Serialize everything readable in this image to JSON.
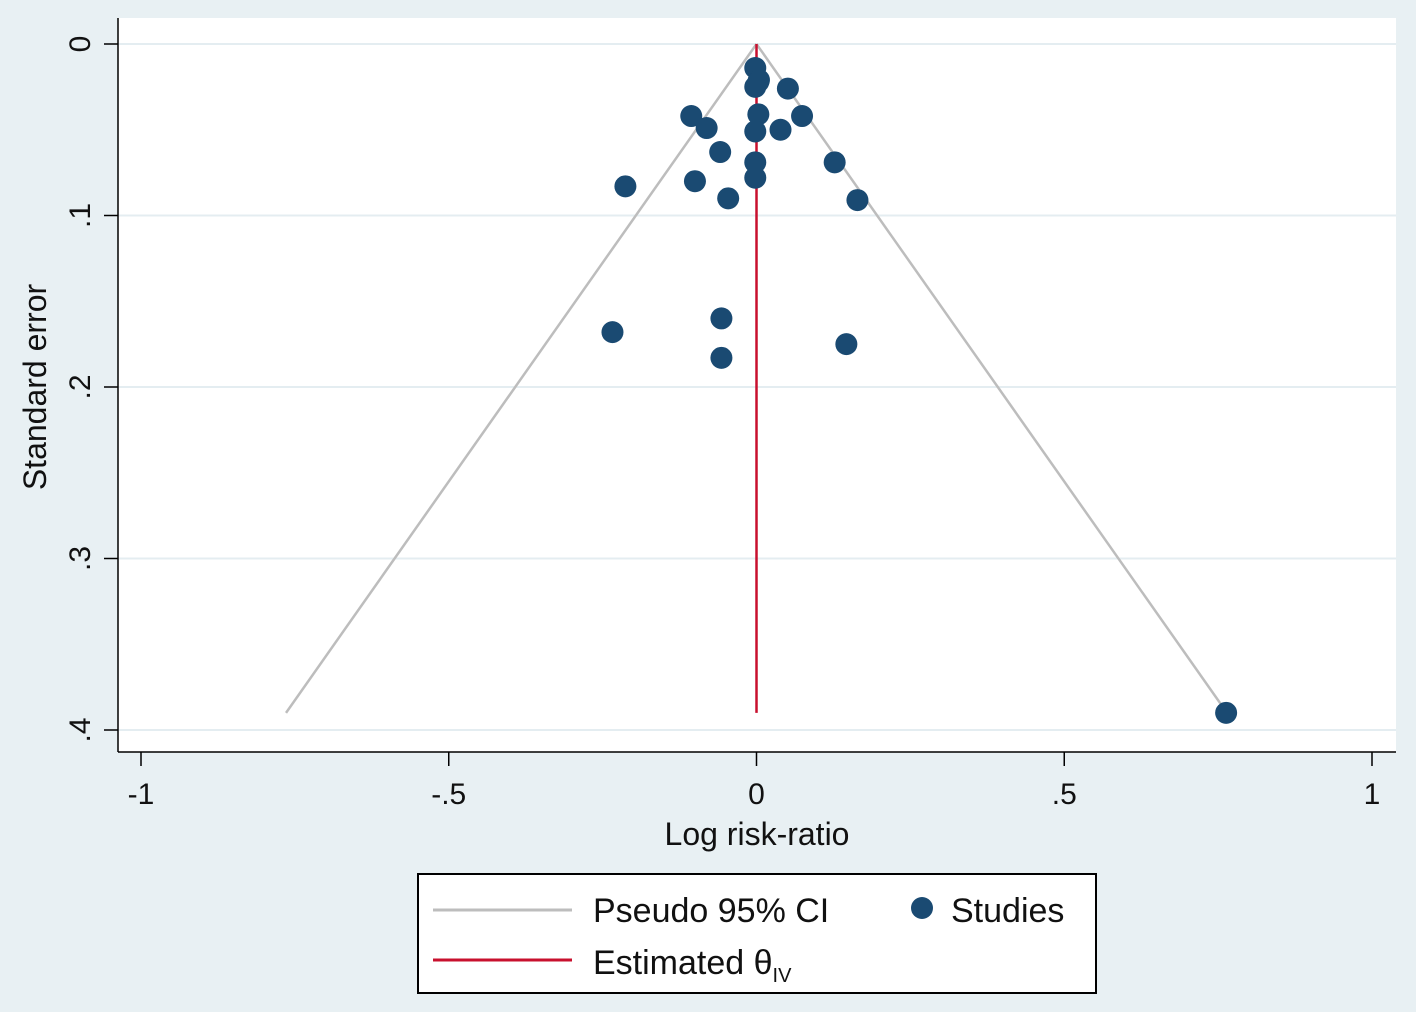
{
  "chart_data": {
    "type": "scatter",
    "title": "",
    "xlabel": "Log risk-ratio",
    "ylabel": "Standard error",
    "xlim": [
      -1,
      1
    ],
    "ylim": [
      0,
      0.4
    ],
    "y_reversed": true,
    "grid": true,
    "x_ticks": [
      {
        "value": -1,
        "label": "-1"
      },
      {
        "value": -0.5,
        "label": "-.5"
      },
      {
        "value": 0,
        "label": "0"
      },
      {
        "value": 0.5,
        "label": ".5"
      },
      {
        "value": 1,
        "label": "1"
      }
    ],
    "y_ticks": [
      {
        "value": 0,
        "label": "0"
      },
      {
        "value": 0.1,
        "label": ".1"
      },
      {
        "value": 0.2,
        "label": ".2"
      },
      {
        "value": 0.3,
        "label": ".3"
      },
      {
        "value": 0.4,
        "label": ".4"
      }
    ],
    "estimate": {
      "value": 0.0,
      "se_max": 0.39,
      "color": "#c8102e"
    },
    "pseudo_ci": {
      "multiplier": 1.96,
      "se_max": 0.39,
      "color": "#bdbdbd"
    },
    "series": [
      {
        "name": "Studies",
        "color": "#1a4a72",
        "points": [
          {
            "x": -0.002,
            "y": 0.014
          },
          {
            "x": 0.004,
            "y": 0.021
          },
          {
            "x": 0.003,
            "y": 0.022
          },
          {
            "x": -0.002,
            "y": 0.025
          },
          {
            "x": 0.051,
            "y": 0.026
          },
          {
            "x": 0.003,
            "y": 0.041
          },
          {
            "x": -0.106,
            "y": 0.042
          },
          {
            "x": 0.074,
            "y": 0.042
          },
          {
            "x": -0.081,
            "y": 0.049
          },
          {
            "x": -0.002,
            "y": 0.051
          },
          {
            "x": 0.039,
            "y": 0.05
          },
          {
            "x": -0.059,
            "y": 0.063
          },
          {
            "x": -0.002,
            "y": 0.069
          },
          {
            "x": 0.127,
            "y": 0.069
          },
          {
            "x": -0.002,
            "y": 0.078
          },
          {
            "x": -0.1,
            "y": 0.08
          },
          {
            "x": -0.213,
            "y": 0.083
          },
          {
            "x": -0.046,
            "y": 0.09
          },
          {
            "x": 0.164,
            "y": 0.091
          },
          {
            "x": -0.057,
            "y": 0.16
          },
          {
            "x": -0.234,
            "y": 0.168
          },
          {
            "x": 0.146,
            "y": 0.175
          },
          {
            "x": -0.057,
            "y": 0.183
          },
          {
            "x": 0.763,
            "y": 0.39
          }
        ]
      }
    ],
    "legend": {
      "placement": "bottom",
      "entries": [
        {
          "key": "ci",
          "label": "Pseudo 95% CI"
        },
        {
          "key": "studies",
          "label": "Studies"
        },
        {
          "key": "estimate",
          "label": "Estimated θ",
          "subscript": "IV"
        }
      ]
    }
  }
}
